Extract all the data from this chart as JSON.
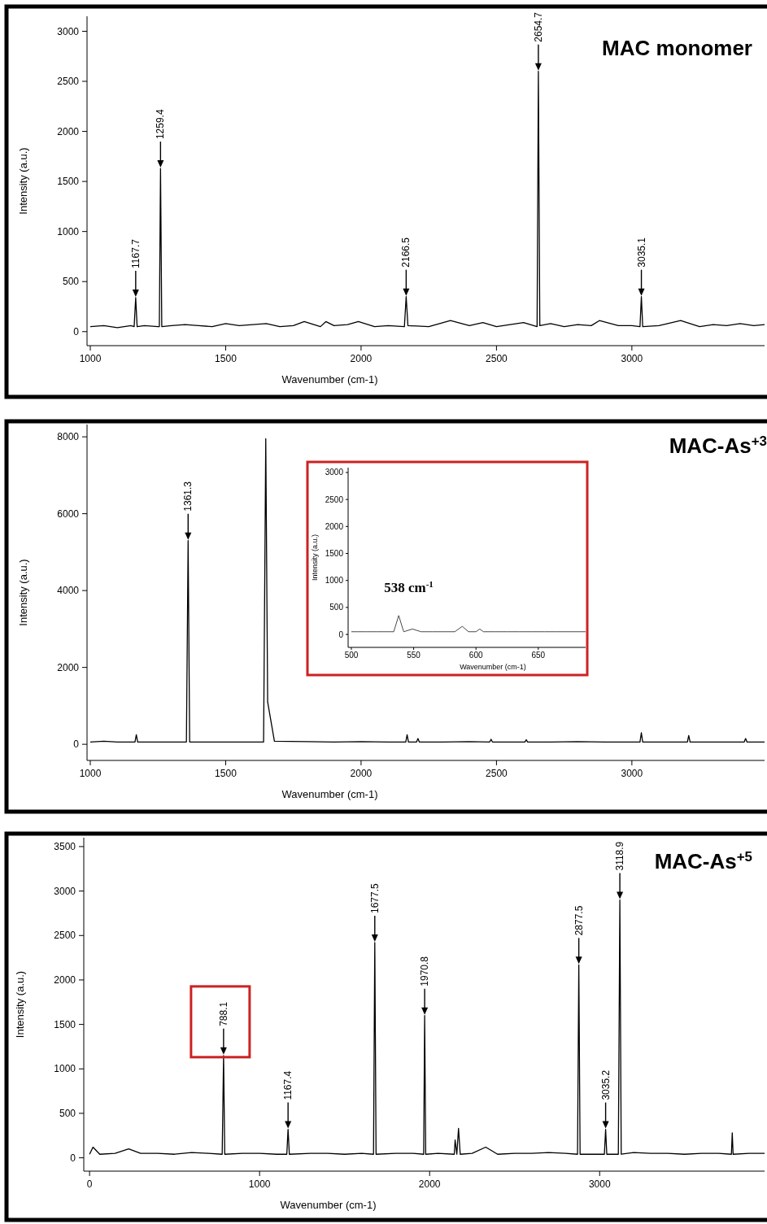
{
  "chart_data": [
    {
      "type": "line",
      "title": "MAC monomer",
      "xlabel": "Wavenumber (cm-1)",
      "ylabel": "Intensity (a.u.)",
      "color": "#000000",
      "x": [
        1000,
        1050,
        1100,
        1150,
        1162,
        1167.7,
        1173,
        1200,
        1250,
        1255,
        1259.4,
        1264,
        1300,
        1350,
        1400,
        1450,
        1500,
        1550,
        1600,
        1650,
        1700,
        1750,
        1790,
        1850,
        1870,
        1900,
        1950,
        1990,
        2050,
        2100,
        2160,
        2166.5,
        2173,
        2250,
        2330,
        2400,
        2450,
        2500,
        2550,
        2600,
        2650,
        2654.7,
        2660,
        2700,
        2750,
        2800,
        2850,
        2880,
        2950,
        3000,
        3030,
        3035.1,
        3040,
        3100,
        3180,
        3250,
        3300,
        3350,
        3400,
        3450,
        3490
      ],
      "values": [
        50,
        60,
        40,
        60,
        50,
        340,
        50,
        60,
        50,
        50,
        1630,
        50,
        60,
        70,
        60,
        50,
        80,
        60,
        70,
        80,
        50,
        60,
        100,
        50,
        100,
        60,
        70,
        100,
        50,
        60,
        50,
        350,
        60,
        50,
        110,
        60,
        90,
        50,
        70,
        90,
        50,
        2600,
        60,
        80,
        50,
        70,
        60,
        110,
        60,
        60,
        50,
        350,
        50,
        60,
        110,
        50,
        70,
        60,
        80,
        60,
        70
      ],
      "xlim": [
        1000,
        3490
      ],
      "ylim": [
        -140,
        3150
      ],
      "xticks": [
        1000,
        1500,
        2000,
        2500,
        3000
      ],
      "yticks": [
        0,
        500,
        1000,
        1500,
        2000,
        2500,
        3000
      ],
      "annotations": [
        {
          "text": "1167.7",
          "x": 1167.7,
          "y": 340
        },
        {
          "text": "1259.4",
          "x": 1259.4,
          "y": 1630
        },
        {
          "text": "2166.5",
          "x": 2166.5,
          "y": 350
        },
        {
          "text": "2654.7",
          "x": 2654.7,
          "y": 2600
        },
        {
          "text": "3035.1",
          "x": 3035.1,
          "y": 350
        }
      ]
    },
    {
      "type": "line",
      "title": "MAC-As$^{+3}$",
      "xlabel": "Wavenumber (cm-1)",
      "ylabel": "Intensity (a.u.)",
      "color": "#000000",
      "x": [
        1000,
        1050,
        1100,
        1165,
        1170,
        1175,
        1250,
        1300,
        1355,
        1361.3,
        1367,
        1450,
        1550,
        1640,
        1648,
        1655,
        1680,
        1800,
        1900,
        2000,
        2100,
        2165,
        2170,
        2175,
        2205,
        2210,
        2215,
        2300,
        2400,
        2475,
        2480,
        2485,
        2605,
        2610,
        2615,
        2700,
        2800,
        2900,
        3030,
        3035,
        3040,
        3100,
        3205,
        3210,
        3215,
        3300,
        3415,
        3420,
        3425,
        3490
      ],
      "values": [
        60,
        80,
        60,
        60,
        250,
        60,
        60,
        60,
        60,
        5300,
        60,
        60,
        60,
        60,
        7950,
        1100,
        80,
        70,
        60,
        70,
        60,
        60,
        250,
        60,
        60,
        150,
        60,
        60,
        70,
        60,
        130,
        60,
        60,
        120,
        60,
        60,
        70,
        60,
        60,
        300,
        60,
        60,
        60,
        230,
        60,
        60,
        60,
        150,
        60,
        60
      ],
      "xlim": [
        1000,
        3490
      ],
      "ylim": [
        -420,
        8320
      ],
      "xticks": [
        1000,
        1500,
        2000,
        2500,
        3000
      ],
      "yticks": [
        0,
        2000,
        4000,
        6000,
        8000
      ],
      "annotations": [
        {
          "text": "1361.3",
          "x": 1361.3,
          "y": 5300
        }
      ]
    },
    {
      "type": "line",
      "xlabel": "Wavenumber (cm-1)",
      "ylabel": "Intensity (a.u.)",
      "color": "#333333",
      "x": [
        500,
        505,
        512,
        520,
        528,
        534,
        538,
        542,
        549,
        556,
        565,
        575,
        583,
        589,
        594,
        600,
        603,
        606,
        615,
        625,
        635,
        645,
        655,
        665,
        675,
        688
      ],
      "values": [
        50,
        50,
        50,
        50,
        50,
        50,
        350,
        50,
        100,
        50,
        50,
        50,
        50,
        150,
        50,
        50,
        100,
        50,
        50,
        50,
        50,
        50,
        50,
        50,
        50,
        50
      ],
      "xlim": [
        500,
        688
      ],
      "ylim": [
        -240,
        3090
      ],
      "xticks": [
        500,
        550,
        600,
        650
      ],
      "yticks": [
        0,
        500,
        1000,
        1500,
        2000,
        2500,
        3000
      ],
      "annotations": [
        {
          "text": "538 cm$^{-1}$",
          "x": 538,
          "y": 330
        }
      ]
    },
    {
      "type": "line",
      "title": "MAC-As$^{+5}$",
      "xlabel": "Wavenumber (cm-1)",
      "ylabel": "Intensity (a.u.)",
      "color": "#000000",
      "x": [
        0,
        20,
        60,
        150,
        230,
        300,
        400,
        500,
        600,
        700,
        780,
        788.1,
        795,
        900,
        1000,
        1100,
        1160,
        1167.4,
        1175,
        1300,
        1400,
        1500,
        1600,
        1670,
        1677.5,
        1685,
        1800,
        1900,
        1965,
        1970.8,
        1977,
        2050,
        2145,
        2150,
        2160,
        2170,
        2180,
        2250,
        2330,
        2400,
        2500,
        2600,
        2700,
        2800,
        2870,
        2877.5,
        2885,
        3028,
        3035.2,
        3042,
        3110,
        3118.9,
        3127,
        3200,
        3300,
        3400,
        3500,
        3600,
        3700,
        3775,
        3780,
        3785,
        3880,
        3970
      ],
      "values": [
        40,
        120,
        40,
        50,
        100,
        50,
        50,
        40,
        60,
        50,
        40,
        1150,
        40,
        50,
        50,
        40,
        40,
        320,
        40,
        50,
        50,
        40,
        50,
        40,
        2420,
        40,
        50,
        50,
        40,
        1600,
        40,
        50,
        40,
        200,
        40,
        330,
        40,
        50,
        120,
        40,
        50,
        50,
        60,
        50,
        40,
        2170,
        40,
        40,
        320,
        40,
        40,
        2900,
        40,
        60,
        50,
        50,
        40,
        50,
        50,
        40,
        280,
        40,
        50,
        50
      ],
      "xlim": [
        -15,
        3970
      ],
      "ylim": [
        -150,
        3600
      ],
      "xticks": [
        0,
        1000,
        2000,
        3000
      ],
      "yticks": [
        0,
        500,
        1000,
        1500,
        2000,
        2500,
        3000,
        3500
      ],
      "annotations": [
        {
          "text": "788.1",
          "x": 788.1,
          "y": 1150
        },
        {
          "text": "1167.4",
          "x": 1167.4,
          "y": 320
        },
        {
          "text": "1677.5",
          "x": 1677.5,
          "y": 2420
        },
        {
          "text": "1970.8",
          "x": 1970.8,
          "y": 1600
        },
        {
          "text": "2877.5",
          "x": 2877.5,
          "y": 2170
        },
        {
          "text": "3035.2",
          "x": 3035.2,
          "y": 320
        },
        {
          "text": "3118.9",
          "x": 3118.9,
          "y": 2900
        }
      ]
    }
  ]
}
